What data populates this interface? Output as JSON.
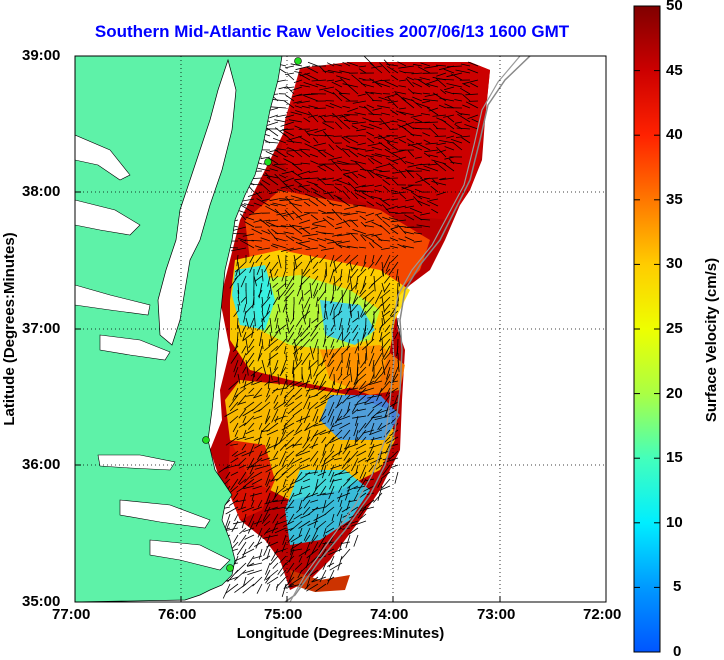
{
  "title": "Southern Mid-Atlantic Raw Velocities 2007/06/13 1600 GMT",
  "xlabel": "Longitude (Degrees:Minutes)",
  "ylabel": "Latitude (Degrees:Minutes)",
  "colorbar_label": "Surface Velocity (cm/s)",
  "x_ticks": [
    "77:00",
    "76:00",
    "75:00",
    "74:00",
    "73:00",
    "72:00"
  ],
  "y_ticks": [
    "39:00",
    "38:00",
    "37:00",
    "36:00",
    "35:00"
  ],
  "colorbar_ticks": [
    "50",
    "45",
    "40",
    "35",
    "30",
    "25",
    "20",
    "15",
    "10",
    "5",
    "0"
  ],
  "colors": {
    "land": "#5ef2a8",
    "title": "#0000ff",
    "station": "#22dd22",
    "arrow": "#000000"
  },
  "chart_data": {
    "type": "heatmap",
    "title": "Southern Mid-Atlantic Raw Velocities 2007/06/13 1600 GMT",
    "xlabel": "Longitude (Degrees:Minutes)",
    "ylabel": "Latitude (Degrees:Minutes)",
    "xlim": [
      -77,
      -72
    ],
    "ylim": [
      35,
      39
    ],
    "clim": [
      0,
      50
    ],
    "colorbar_label": "Surface Velocity (cm/s)",
    "grid": true
  }
}
